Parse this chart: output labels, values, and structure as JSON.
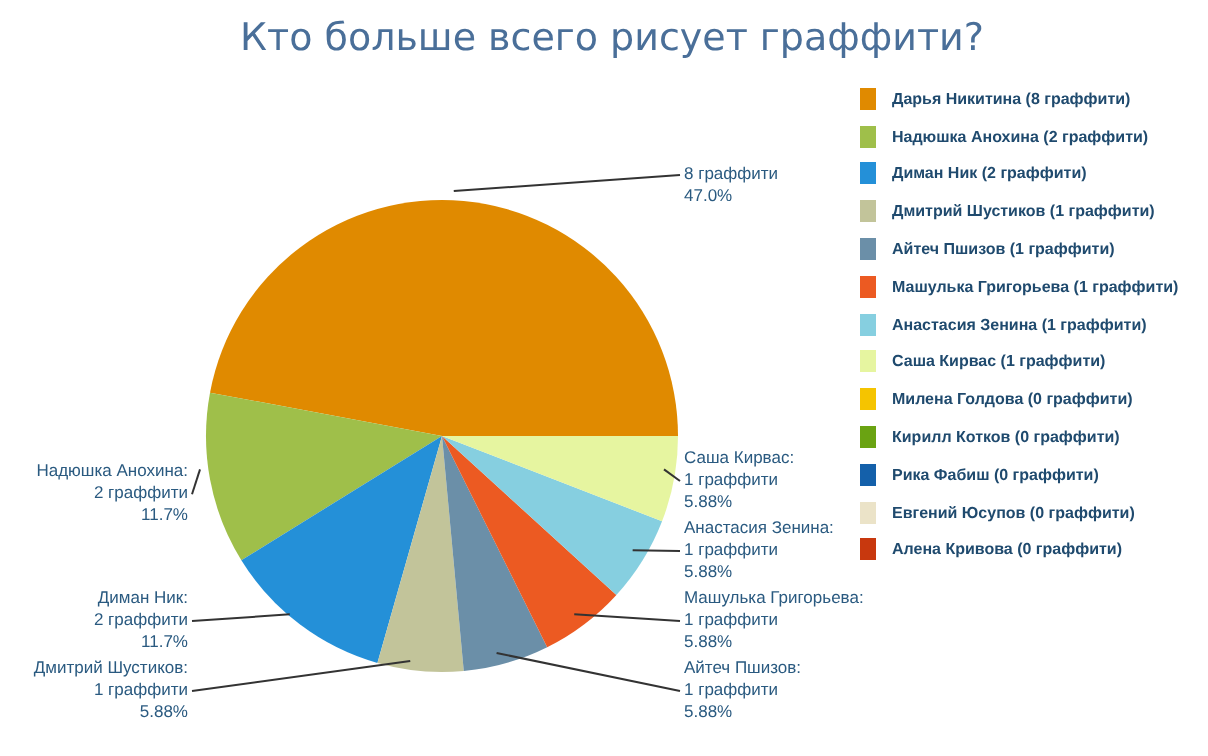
{
  "chart_data": {
    "type": "pie",
    "title": "Кто больше всего рисует граффити?",
    "categories": [
      "Дарья Никитина (8 граффити)",
      "Надюшка Анохина (2 граффити)",
      "Диман Ник (2 граффити)",
      "Дмитрий Шустиков (1 граффити)",
      "Айтеч Пшизов (1 граффити)",
      "Машулька Григорьева (1 граффити)",
      "Анастасия Зенина (1 граффити)",
      "Саша Кирвас (1 граффити)",
      "Милена Голдова (0 граффити)",
      "Кирилл Котков (0 граффити)",
      "Рика Фабиш (0 граффити)",
      "Евгений Юсупов (0 граффити)",
      "Алена Кривова (0 граффити)"
    ],
    "values": [
      8,
      2,
      2,
      1,
      1,
      1,
      1,
      1,
      0,
      0,
      0,
      0,
      0
    ],
    "colors": [
      "#e08a00",
      "#9fbf4a",
      "#2490d8",
      "#c2c49a",
      "#6b8fa8",
      "#ec5a22",
      "#86cfe0",
      "#e6f5a0",
      "#f5c400",
      "#6aa312",
      "#1460aa",
      "#ebe3c8",
      "#c8380e"
    ],
    "value_labels": [
      "8 граффити\n47.0%",
      "Надюшка Анохина:\n2 граффити\n11.7%",
      "Диман Ник:\n2 граффити\n11.7%",
      "Дмитрий Шустиков:\n1 граффити\n5.88%",
      "Айтеч Пшизов:\n1 граффити\n5.88%",
      "Машулька Григорьева:\n1 граффити\n5.88%",
      "Анастасия Зенина:\n1 граффити\n5.88%",
      "Саша Кирвас:\n1 граффити\n5.88%",
      null,
      null,
      null,
      null,
      null
    ],
    "legend": "right"
  }
}
